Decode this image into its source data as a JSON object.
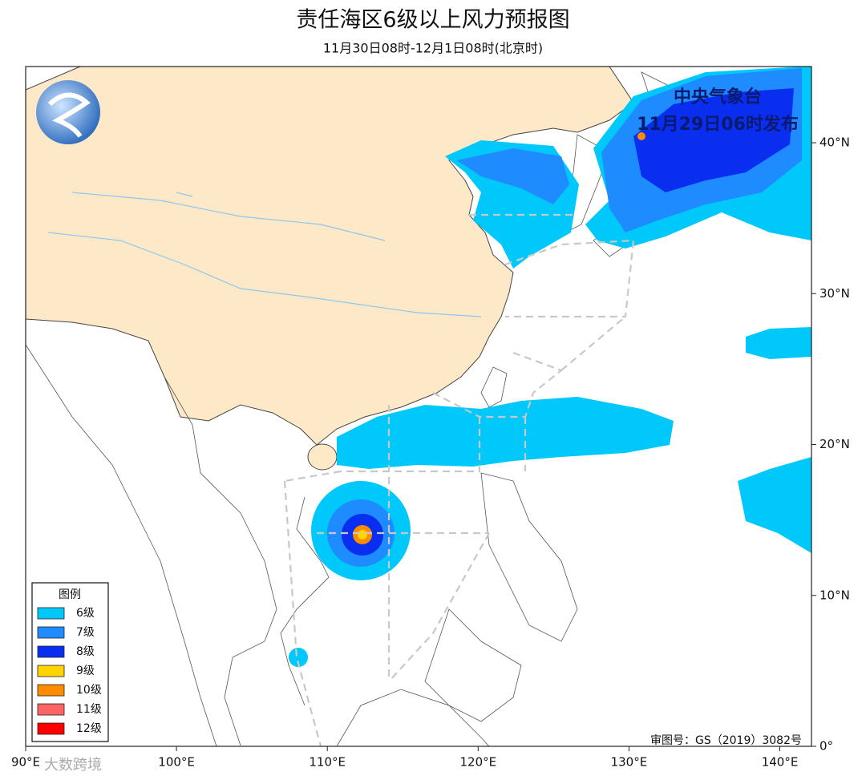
{
  "header": {
    "title": "责任海区6级以上风力预报图",
    "subtitle": "11月30日08时-12月1日08时(北京时)"
  },
  "issuer": {
    "name": "中央气象台",
    "time": "11月29日06时发布"
  },
  "legend": {
    "title": "图例",
    "items": [
      {
        "label": "6级",
        "color": "#00c8fa"
      },
      {
        "label": "7级",
        "color": "#1e8cff"
      },
      {
        "label": "8级",
        "color": "#0a2ef0"
      },
      {
        "label": "9级",
        "color": "#ffd400"
      },
      {
        "label": "10级",
        "color": "#ff8c00"
      },
      {
        "label": "11级",
        "color": "#ff6464"
      },
      {
        "label": "12级",
        "color": "#ff0000"
      }
    ]
  },
  "map": {
    "xlim": [
      90,
      142.1
    ],
    "ylim": [
      0,
      45.05
    ],
    "xticks": [
      {
        "value": 90,
        "label": "90°E"
      },
      {
        "value": 100,
        "label": "100°E"
      },
      {
        "value": 110,
        "label": "110°E"
      },
      {
        "value": 120,
        "label": "120°E"
      },
      {
        "value": 130,
        "label": "130°E"
      },
      {
        "value": 140,
        "label": "140°E"
      }
    ],
    "yticks": [
      {
        "value": 0,
        "label": "0°"
      },
      {
        "value": 10,
        "label": "10°N"
      },
      {
        "value": 20,
        "label": "20°N"
      },
      {
        "value": 30,
        "label": "30°N"
      },
      {
        "value": 40,
        "label": "40°N"
      }
    ]
  },
  "footer": {
    "review": "审图号：GS（2019）3082号",
    "watermark": "大数跨境"
  }
}
